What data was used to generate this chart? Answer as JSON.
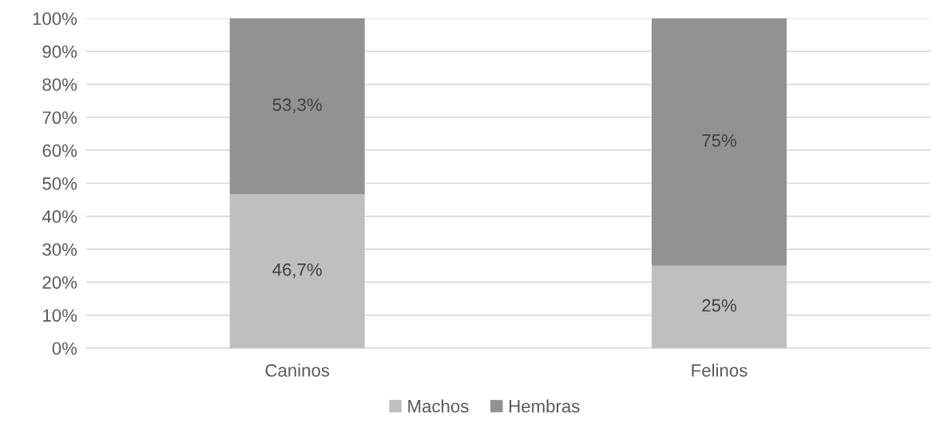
{
  "chart_data": {
    "type": "bar",
    "stacked": true,
    "categories": [
      "Caninos",
      "Felinos"
    ],
    "series": [
      {
        "name": "Machos",
        "color": "#bfbfbf",
        "values": [
          46.7,
          25
        ],
        "value_labels": [
          "46,7%",
          "25%"
        ]
      },
      {
        "name": "Hembras",
        "color": "#929292",
        "values": [
          53.3,
          75
        ],
        "value_labels": [
          "53,3%",
          "75%"
        ]
      }
    ],
    "ylim": [
      0,
      100
    ],
    "yticks": [
      {
        "value": 0,
        "label": "0%"
      },
      {
        "value": 10,
        "label": "10%"
      },
      {
        "value": 20,
        "label": "20%"
      },
      {
        "value": 30,
        "label": "30%"
      },
      {
        "value": 40,
        "label": "40%"
      },
      {
        "value": 50,
        "label": "50%"
      },
      {
        "value": 60,
        "label": "60%"
      },
      {
        "value": 70,
        "label": "70%"
      },
      {
        "value": 80,
        "label": "80%"
      },
      {
        "value": 90,
        "label": "90%"
      },
      {
        "value": 100,
        "label": "100%"
      }
    ],
    "grid": "y",
    "legend": "bottom"
  }
}
